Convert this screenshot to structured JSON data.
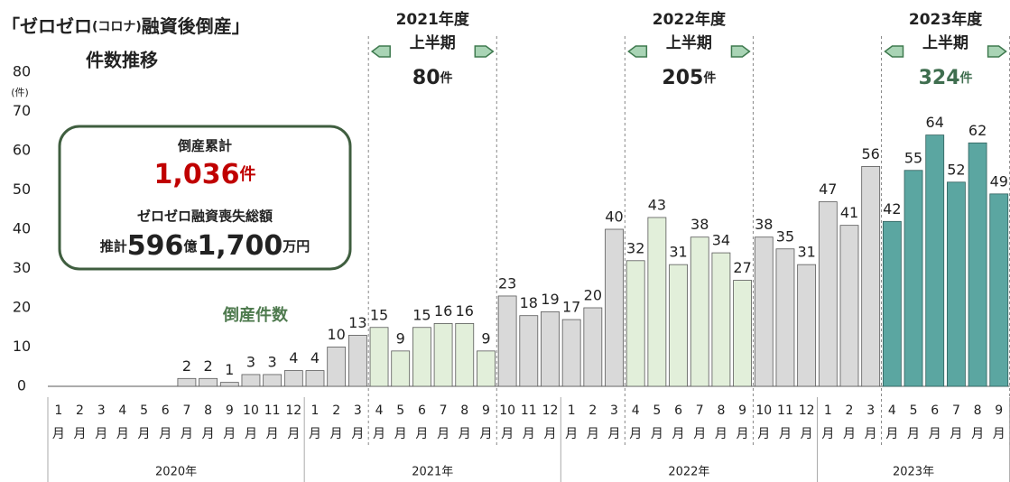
{
  "chart_data": {
    "type": "bar",
    "title": [
      "「ゼロゼロ",
      "(コロナ)",
      "融資後倒産」"
    ],
    "subtitle": "件数推移",
    "y_unit": "(件)",
    "series_name": "倒産件数",
    "categories": [
      "1",
      "2",
      "3",
      "4",
      "5",
      "6",
      "7",
      "8",
      "9",
      "10",
      "11",
      "12",
      "1",
      "2",
      "3",
      "4",
      "5",
      "6",
      "7",
      "8",
      "9",
      "10",
      "11",
      "12",
      "1",
      "2",
      "3",
      "4",
      "5",
      "6",
      "7",
      "8",
      "9",
      "10",
      "11",
      "12",
      "1",
      "2",
      "3",
      "4",
      "5",
      "6",
      "7",
      "8",
      "9"
    ],
    "category_unit": "月",
    "year_labels": [
      "2020年",
      "2021年",
      "2022年",
      "2023年"
    ],
    "values": [
      0,
      0,
      0,
      0,
      0,
      0,
      2,
      2,
      1,
      3,
      3,
      4,
      4,
      10,
      13,
      15,
      9,
      15,
      16,
      16,
      9,
      23,
      18,
      19,
      17,
      20,
      40,
      32,
      43,
      31,
      38,
      34,
      27,
      38,
      35,
      31,
      47,
      41,
      56,
      42,
      55,
      64,
      52,
      62,
      49
    ],
    "value_labels": [
      null,
      null,
      null,
      null,
      null,
      null,
      "2",
      "2",
      "1",
      "3",
      "3",
      "4",
      "4",
      "10",
      "13",
      "15",
      "9",
      "15",
      "16",
      "16",
      "9",
      "23",
      "18",
      "19",
      "17",
      "20",
      "40",
      "32",
      "43",
      "31",
      "38",
      "34",
      "27",
      "38",
      "35",
      "31",
      "47",
      "41",
      "56",
      "42",
      "55",
      "64",
      "52",
      "62",
      "49"
    ],
    "base_color": "#d9d9d9",
    "colors": [
      "#d9d9d9",
      "#d9d9d9",
      "#d9d9d9",
      "#d9d9d9",
      "#d9d9d9",
      "#d9d9d9",
      "#d9d9d9",
      "#d9d9d9",
      "#d9d9d9",
      "#d9d9d9",
      "#d9d9d9",
      "#d9d9d9",
      "#d9d9d9",
      "#d9d9d9",
      "#d9d9d9",
      "#e2efda",
      "#e2efda",
      "#e2efda",
      "#e2efda",
      "#e2efda",
      "#e2efda",
      "#d9d9d9",
      "#d9d9d9",
      "#d9d9d9",
      "#d9d9d9",
      "#d9d9d9",
      "#d9d9d9",
      "#e2efda",
      "#e2efda",
      "#e2efda",
      "#e2efda",
      "#e2efda",
      "#e2efda",
      "#d9d9d9",
      "#d9d9d9",
      "#d9d9d9",
      "#d9d9d9",
      "#d9d9d9",
      "#d9d9d9",
      "#5ba6a1",
      "#5ba6a1",
      "#5ba6a1",
      "#5ba6a1",
      "#5ba6a1",
      "#5ba6a1"
    ],
    "ylim": [
      0,
      80
    ],
    "yticks": [
      0,
      10,
      20,
      30,
      40,
      50,
      60,
      70,
      80
    ],
    "grid": false,
    "periods": [
      {
        "title": "2021年度",
        "subtitle": "上半期",
        "total": 80,
        "unit": "件",
        "color": "#222222"
      },
      {
        "title": "2022年度",
        "subtitle": "上半期",
        "total": 205,
        "unit": "件",
        "color": "#222222"
      },
      {
        "title": "2023年度",
        "subtitle": "上半期",
        "total": 324,
        "unit": "件",
        "color": "#3f6e4f"
      }
    ],
    "summary": {
      "label": "倒産累計",
      "value": 1036,
      "value_label": "1,036",
      "unit": "件",
      "loss_label": "ゼロゼロ融資喪失総額",
      "loss_parts": [
        "推計",
        "596",
        "億",
        "1,700",
        "万円"
      ]
    }
  }
}
